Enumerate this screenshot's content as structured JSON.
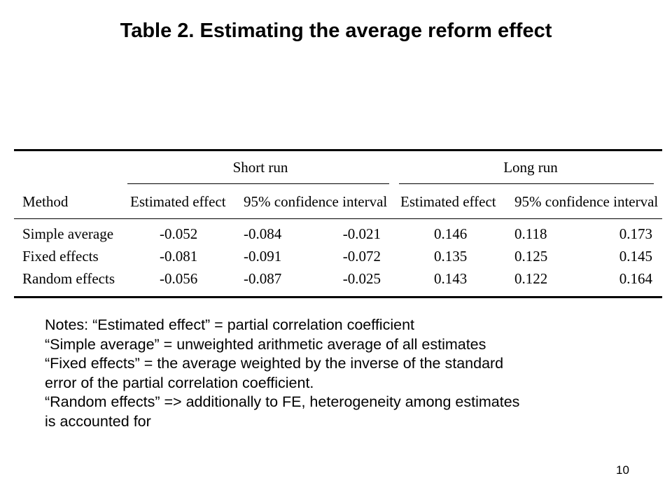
{
  "slide": {
    "title": "Table 2. Estimating the average reform effect",
    "page_number": "10"
  },
  "table": {
    "group_headers": {
      "short_run": "Short run",
      "long_run": "Long run"
    },
    "method_header": "Method",
    "sub_headers": {
      "short_effect": "Estimated effect",
      "short_ci": "95% confidence interval",
      "long_effect": "Estimated effect",
      "long_ci": "95% confidence interval"
    },
    "rows": [
      {
        "method": "Simple average",
        "short_effect": "-0.052",
        "short_ci_low": "-0.084",
        "short_ci_high": "-0.021",
        "long_effect": "0.146",
        "long_ci_low": "0.118",
        "long_ci_high": "0.173"
      },
      {
        "method": "Fixed effects",
        "short_effect": "-0.081",
        "short_ci_low": "-0.091",
        "short_ci_high": "-0.072",
        "long_effect": "0.135",
        "long_ci_low": "0.125",
        "long_ci_high": "0.145"
      },
      {
        "method": "Random effects",
        "short_effect": "-0.056",
        "short_ci_low": "-0.087",
        "short_ci_high": "-0.025",
        "long_effect": "0.143",
        "long_ci_low": "0.122",
        "long_ci_high": "0.164"
      }
    ]
  },
  "notes": [
    "Notes: “Estimated effect” =  partial correlation coefficient",
    "“Simple average” = unweighted arithmetic average of all estimates",
    "“Fixed effects” = the average weighted by the inverse of the standard",
    "error of the partial correlation coefficient.",
    "“Random effects” => additionally to FE, heterogeneity among estimates",
    "is accounted for"
  ]
}
